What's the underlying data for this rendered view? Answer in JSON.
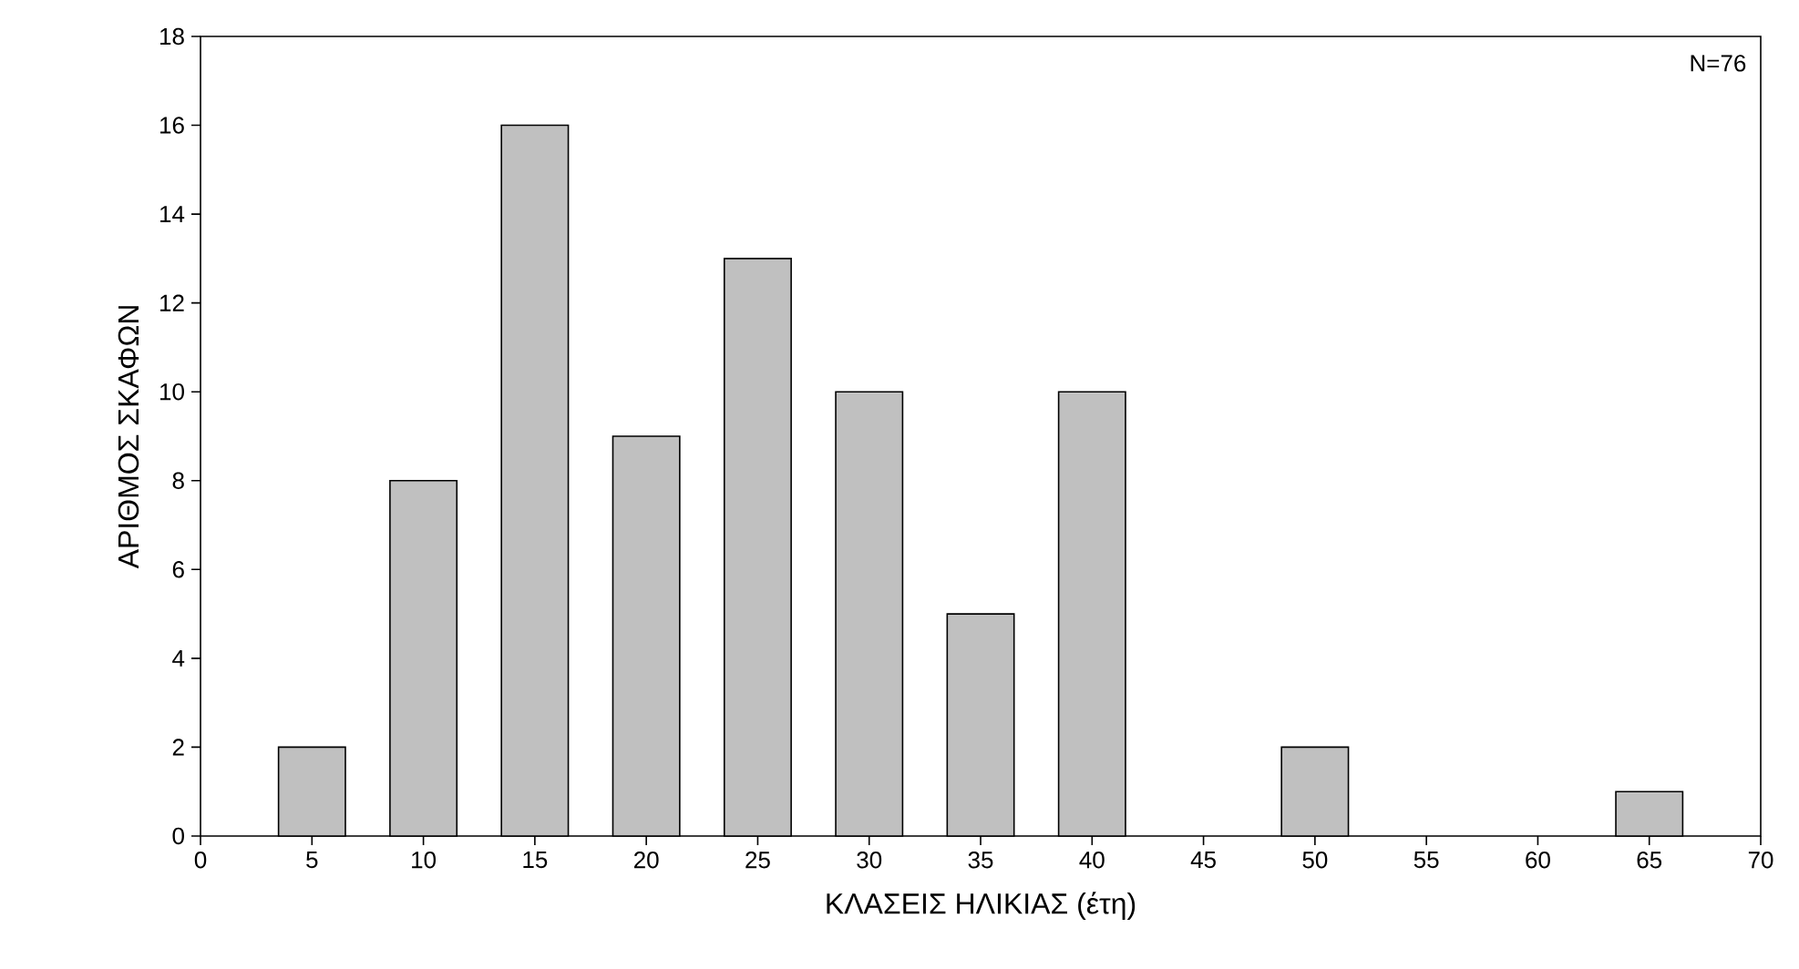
{
  "chart_data": {
    "type": "bar",
    "xlabel": "ΚΛΑΣΕΙΣ ΗΛΙΚΙΑΣ (έτη)",
    "ylabel": "ΑΡΙΘΜΟΣ ΣΚΑΦΩΝ",
    "x": [
      5,
      10,
      15,
      20,
      25,
      30,
      35,
      40,
      50,
      65
    ],
    "values": [
      2,
      8,
      16,
      9,
      13,
      10,
      5,
      10,
      2,
      1
    ],
    "color": "#c0c0c0",
    "xlim": [
      0,
      70
    ],
    "xticks": [
      0,
      5,
      10,
      15,
      20,
      25,
      30,
      35,
      40,
      45,
      50,
      55,
      60,
      65,
      70
    ],
    "ylim": [
      0,
      18
    ],
    "yticks": [
      0,
      2,
      4,
      6,
      8,
      10,
      12,
      14,
      16,
      18
    ],
    "grid": false,
    "annotations": [
      "N=76"
    ]
  }
}
